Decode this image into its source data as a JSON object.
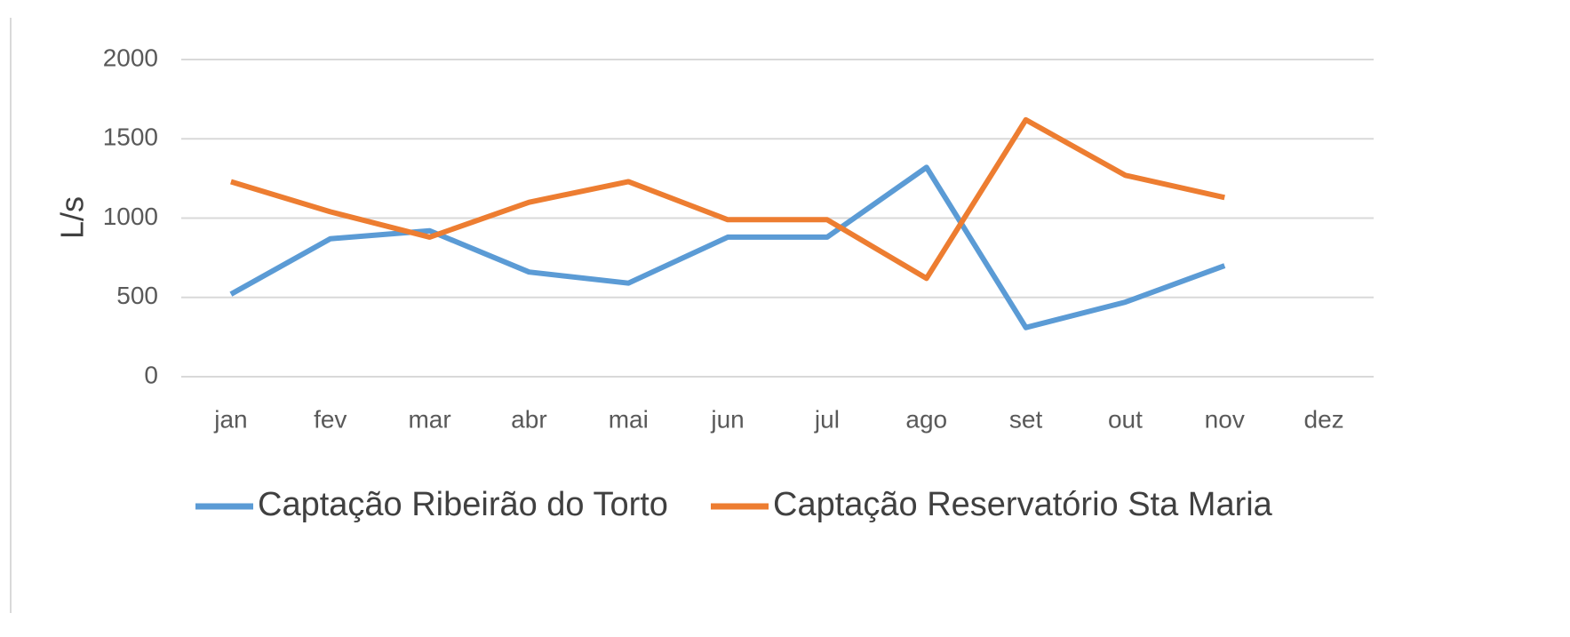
{
  "chart_data": {
    "type": "line",
    "y_label": "L/s",
    "categories": [
      "jan",
      "fev",
      "mar",
      "abr",
      "mai",
      "jun",
      "jul",
      "ago",
      "set",
      "out",
      "nov",
      "dez"
    ],
    "series": [
      {
        "name": "Captação Ribeirão do Torto",
        "color": "#5b9bd5",
        "values": [
          520,
          870,
          920,
          660,
          590,
          880,
          880,
          1320,
          310,
          470,
          700,
          null
        ]
      },
      {
        "name": "Captação Reservatório Sta Maria",
        "color": "#ed7d31",
        "values": [
          1230,
          1040,
          880,
          1100,
          1230,
          990,
          990,
          620,
          1620,
          1270,
          1130,
          null
        ]
      }
    ],
    "ylim": [
      0,
      2000
    ],
    "yticks": [
      0,
      500,
      1000,
      1500,
      2000
    ],
    "grid": true
  }
}
